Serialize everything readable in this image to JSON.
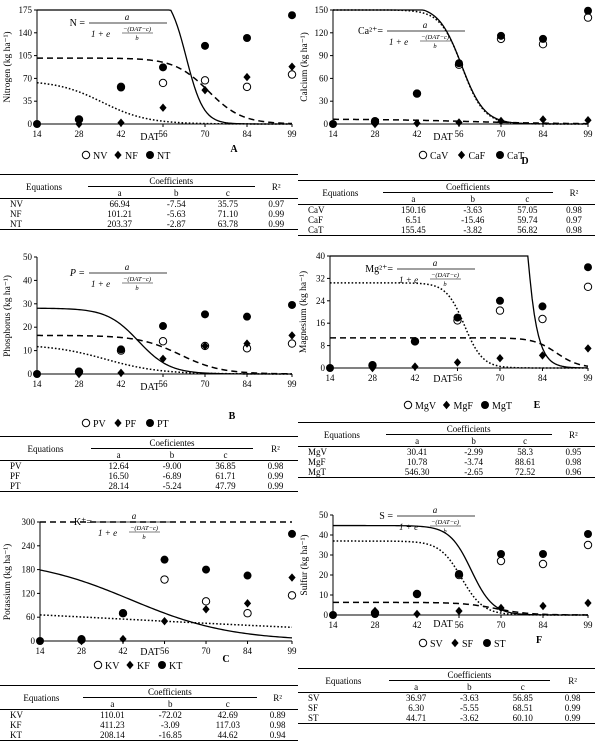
{
  "xlabel": "DAT",
  "formula_fraction": {
    "numerator": "a",
    "exp_numerator": "−(DAT−c)",
    "exp_denominator": "b",
    "denominator_lead": "1 + e"
  },
  "table_headers": {
    "equations": "Equations",
    "r2": "R²",
    "a": "a",
    "b": "b",
    "c": "c"
  },
  "chart_data": [
    {
      "id": "A",
      "panel_letter": "A",
      "type": "line",
      "ylabel": "Nitrogen (kg ha⁻¹)",
      "formula_lhs": "N =",
      "xticks": [
        14,
        28,
        42,
        56,
        70,
        84,
        99
      ],
      "xlim": [
        14,
        99
      ],
      "yticks": [
        0,
        35,
        70,
        105,
        140,
        175
      ],
      "ylim": [
        0,
        175
      ],
      "series": [
        {
          "name": "NV",
          "marker": "open-circle",
          "curve": "dotted",
          "a": 66.94,
          "b": -7.54,
          "c": 35.75,
          "x": [
            28,
            42,
            56,
            70,
            84,
            99
          ],
          "y": [
            7,
            57,
            63,
            67,
            57,
            76
          ]
        },
        {
          "name": "NF",
          "marker": "diamond",
          "curve": "dashed",
          "a": 101.21,
          "b": -5.63,
          "c": 71.1,
          "x": [
            28,
            42,
            56,
            70,
            84,
            99
          ],
          "y": [
            0,
            2,
            25,
            52,
            72,
            88
          ]
        },
        {
          "name": "NT",
          "marker": "filled-circle",
          "curve": "solid",
          "a": 203.37,
          "b": -2.87,
          "c": 63.78,
          "x": [
            28,
            42,
            56,
            70,
            84,
            99
          ],
          "y": [
            7,
            56,
            87,
            120,
            132,
            167
          ]
        }
      ],
      "table": {
        "title": "Coefficients",
        "rows": [
          [
            "NV",
            "66.94",
            "-7.54",
            "35.75",
            "0.97"
          ],
          [
            "NF",
            "101.21",
            "-5.63",
            "71.10",
            "0.99"
          ],
          [
            "NT",
            "203.37",
            "-2.87",
            "63.78",
            "0.99"
          ]
        ]
      }
    },
    {
      "id": "D",
      "panel_letter": "D",
      "type": "line",
      "ylabel": "Calcium (kg ha⁻¹)",
      "formula_lhs": "Ca²⁺=",
      "xticks": [
        14,
        28,
        42,
        56,
        70,
        84,
        99
      ],
      "xlim": [
        14,
        99
      ],
      "yticks": [
        0,
        30,
        60,
        90,
        120,
        150
      ],
      "ylim": [
        0,
        150
      ],
      "series": [
        {
          "name": "CaV",
          "marker": "open-circle",
          "curve": "dotted",
          "a": 150.16,
          "b": -3.63,
          "c": 57.05,
          "x": [
            28,
            42,
            56,
            70,
            84,
            99
          ],
          "y": [
            3,
            40,
            78,
            112,
            105,
            140
          ]
        },
        {
          "name": "CaF",
          "marker": "diamond",
          "curve": "dashed",
          "a": 6.51,
          "b": -15.46,
          "c": 59.74,
          "x": [
            28,
            42,
            56,
            70,
            84,
            99
          ],
          "y": [
            0,
            1,
            2,
            4,
            6,
            5
          ]
        },
        {
          "name": "CaT",
          "marker": "filled-circle",
          "curve": "solid",
          "a": 155.45,
          "b": -3.82,
          "c": 56.82,
          "x": [
            28,
            42,
            56,
            70,
            84,
            99
          ],
          "y": [
            4,
            40,
            80,
            116,
            112,
            149
          ]
        }
      ],
      "table": {
        "title": "Coefficients",
        "rows": [
          [
            "CaV",
            "150.16",
            "-3.63",
            "57.05",
            "0.98"
          ],
          [
            "CaF",
            "6.51",
            "-15.46",
            "59.74",
            "0.97"
          ],
          [
            "CaT",
            "155.45",
            "-3.82",
            "56.82",
            "0.98"
          ]
        ]
      }
    },
    {
      "id": "B",
      "panel_letter": "B",
      "type": "line",
      "ylabel": "Phosphorus (kg ha⁻¹)",
      "formula_lhs": "P =",
      "xticks": [
        14,
        28,
        42,
        56,
        70,
        84,
        99
      ],
      "xlim": [
        14,
        99
      ],
      "yticks": [
        0,
        10,
        20,
        30,
        40,
        50
      ],
      "ylim": [
        0,
        50
      ],
      "series": [
        {
          "name": "PV",
          "marker": "open-circle",
          "curve": "dotted",
          "a": 12.64,
          "b": -9.0,
          "c": 36.85,
          "x": [
            28,
            42,
            56,
            70,
            84,
            99
          ],
          "y": [
            1,
            10,
            14,
            12,
            11,
            13
          ]
        },
        {
          "name": "PF",
          "marker": "diamond",
          "curve": "dashed",
          "a": 16.5,
          "b": -6.89,
          "c": 61.71,
          "x": [
            28,
            42,
            56,
            70,
            84,
            99
          ],
          "y": [
            0,
            0.5,
            6.5,
            12,
            13,
            16.5
          ]
        },
        {
          "name": "PT",
          "marker": "filled-circle",
          "curve": "solid",
          "a": 28.14,
          "b": -5.24,
          "c": 47.79,
          "x": [
            28,
            42,
            56,
            70,
            84,
            99
          ],
          "y": [
            1,
            10.5,
            20.5,
            25.5,
            24.5,
            29.5
          ]
        }
      ],
      "table": {
        "title": "Coeficientes",
        "rows": [
          [
            "PV",
            "12.64",
            "-9.00",
            "36.85",
            "0.98"
          ],
          [
            "PF",
            "16.50",
            "-6.89",
            "61.71",
            "0.99"
          ],
          [
            "PT",
            "28.14",
            "-5.24",
            "47.79",
            "0.99"
          ]
        ]
      }
    },
    {
      "id": "E",
      "panel_letter": "E",
      "type": "line",
      "ylabel": "Magnesium (kg ha⁻¹)",
      "formula_lhs": "Mg²⁺=",
      "xticks": [
        14,
        28,
        42,
        56,
        70,
        84,
        99
      ],
      "xlim": [
        14,
        99
      ],
      "yticks": [
        0,
        8,
        16,
        24,
        32,
        40
      ],
      "ylim": [
        0,
        40
      ],
      "series": [
        {
          "name": "MgV",
          "marker": "open-circle",
          "curve": "dotted",
          "a": 30.41,
          "b": -2.99,
          "c": 58.3,
          "x": [
            28,
            42,
            56,
            70,
            84,
            99
          ],
          "y": [
            1,
            9.5,
            17,
            20.5,
            17.5,
            29
          ]
        },
        {
          "name": "MgF",
          "marker": "diamond",
          "curve": "dashed",
          "a": 10.78,
          "b": -3.74,
          "c": 88.61,
          "x": [
            28,
            42,
            56,
            70,
            84,
            99
          ],
          "y": [
            0,
            0.5,
            2,
            3.5,
            4.5,
            7
          ]
        },
        {
          "name": "MgT",
          "marker": "filled-circle",
          "curve": "solid",
          "a": 546.3,
          "b": -2.65,
          "c": 72.52,
          "x": [
            28,
            42,
            56,
            70,
            84,
            99
          ],
          "y": [
            1,
            9.5,
            18,
            24,
            22,
            36
          ]
        }
      ],
      "table": {
        "title": "Coefficients",
        "rows": [
          [
            "MgV",
            "30.41",
            "-2.99",
            "58.3",
            "0.95"
          ],
          [
            "MgF",
            "10.78",
            "-3.74",
            "88.61",
            "0.98"
          ],
          [
            "MgT",
            "546.30",
            "-2.65",
            "72.52",
            "0.96"
          ]
        ]
      }
    },
    {
      "id": "C",
      "panel_letter": "C",
      "type": "line",
      "ylabel": "Potassium (kg ha⁻¹)",
      "formula_lhs": "K⁺=",
      "xticks": [
        14,
        28,
        42,
        56,
        70,
        84,
        99
      ],
      "xlim": [
        14,
        99
      ],
      "yticks": [
        0,
        60,
        120,
        180,
        240,
        300
      ],
      "ylim": [
        0,
        300
      ],
      "series": [
        {
          "name": "KV",
          "marker": "open-circle",
          "curve": "dotted",
          "a": 110.01,
          "b": -72.02,
          "c": 42.69,
          "x": [
            28,
            42,
            56,
            70,
            84,
            99
          ],
          "y": [
            3,
            70,
            155,
            100,
            70,
            115
          ]
        },
        {
          "name": "KF",
          "marker": "diamond",
          "curve": "dashed",
          "a": 411.23,
          "b": -3.09,
          "c": 117.03,
          "x": [
            28,
            42,
            56,
            70,
            84,
            99
          ],
          "y": [
            0,
            5,
            50,
            80,
            95,
            160
          ]
        },
        {
          "name": "KT",
          "marker": "filled-circle",
          "curve": "solid",
          "a": 208.14,
          "b": -16.85,
          "c": 44.62,
          "x": [
            28,
            42,
            56,
            70,
            84,
            99
          ],
          "y": [
            5,
            70,
            205,
            180,
            165,
            270
          ]
        }
      ],
      "table": {
        "title": "Coefficients",
        "rows": [
          [
            "KV",
            "110.01",
            "-72.02",
            "42.69",
            "0.89"
          ],
          [
            "KF",
            "411.23",
            "-3.09",
            "117.03",
            "0.98"
          ],
          [
            "KT",
            "208.14",
            "-16.85",
            "44.62",
            "0.94"
          ]
        ]
      }
    },
    {
      "id": "F",
      "panel_letter": "F",
      "type": "line",
      "ylabel": "Sulfur (kg ha⁻¹)",
      "formula_lhs": "S =",
      "xticks": [
        14,
        28,
        42,
        56,
        70,
        84,
        99
      ],
      "xlim": [
        14,
        99
      ],
      "yticks": [
        0,
        10,
        20,
        30,
        40,
        50
      ],
      "ylim": [
        0,
        50
      ],
      "series": [
        {
          "name": "SV",
          "marker": "open-circle",
          "curve": "dotted",
          "a": 36.97,
          "b": -3.63,
          "c": 56.85,
          "x": [
            28,
            42,
            56,
            70,
            84,
            99
          ],
          "y": [
            1,
            10.5,
            20,
            27,
            25.5,
            35
          ]
        },
        {
          "name": "SF",
          "marker": "diamond",
          "curve": "dashed",
          "a": 6.3,
          "b": -5.55,
          "c": 68.51,
          "x": [
            28,
            42,
            56,
            70,
            84,
            99
          ],
          "y": [
            2,
            0.5,
            2,
            3.5,
            4.5,
            6
          ]
        },
        {
          "name": "ST",
          "marker": "filled-circle",
          "curve": "solid",
          "a": 44.71,
          "b": -3.62,
          "c": 60.1,
          "x": [
            28,
            42,
            56,
            70,
            84,
            99
          ],
          "y": [
            0.5,
            10.5,
            20.5,
            30.5,
            30.5,
            40.5
          ]
        }
      ],
      "table": {
        "title": "Coefficients",
        "rows": [
          [
            "SV",
            "36.97",
            "-3.63",
            "56.85",
            "0.98"
          ],
          [
            "SF",
            "6.30",
            "-5.55",
            "68.51",
            "0.99"
          ],
          [
            "ST",
            "44.71",
            "-3.62",
            "60.10",
            "0.99"
          ]
        ]
      }
    }
  ]
}
